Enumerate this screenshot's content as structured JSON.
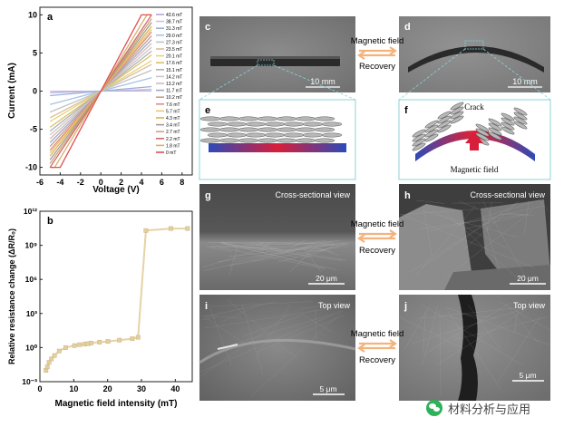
{
  "panels": {
    "a": {
      "label": "a",
      "xlabel": "Voltage (V)",
      "ylabel": "Current (mA)",
      "xticks": [
        "-6",
        "-4",
        "-2",
        "0",
        "2",
        "4",
        "6",
        "8"
      ],
      "yticks": [
        "10",
        "5",
        "0",
        "-5",
        "-10"
      ]
    },
    "b": {
      "label": "b",
      "xlabel": "Magnetic field intensity (mT)",
      "ylabel": "Relative resistance change (ΔR/R₀)",
      "xticks": [
        "0",
        "10",
        "20",
        "30",
        "40"
      ]
    },
    "c": {
      "label": "c",
      "scale": "10 mm"
    },
    "d": {
      "label": "d",
      "scale": "10 mm"
    },
    "e": {
      "label": "e"
    },
    "f": {
      "label": "f",
      "crack": "Crack",
      "field": "Magnetic field"
    },
    "g": {
      "label": "g",
      "title": "Cross-sectional view",
      "scale": "20 μm"
    },
    "h": {
      "label": "h",
      "title": "Cross-sectional view",
      "scale": "20 μm"
    },
    "i": {
      "label": "i",
      "title": "Top view",
      "scale": "5 μm"
    },
    "j": {
      "label": "j",
      "title": "Top view",
      "scale": "5 μm"
    }
  },
  "arrows": {
    "forward": "Magnetic field",
    "back": "Recovery"
  },
  "watermark": "材料分析与应用",
  "chart_data": [
    {
      "type": "line",
      "title": "",
      "xlabel": "Voltage (V)",
      "ylabel": "Current (mA)",
      "xlim": [
        -6,
        9
      ],
      "ylim": [
        -11,
        11
      ],
      "legend_position": "top-right",
      "legend": [
        "43.6 mT",
        "38.7 mT",
        "31.3 mT",
        "29.0 mT",
        "27.3 mT",
        "23.5 mT",
        "20.1 mT",
        "17.6 mT",
        "15.1 mT",
        "14.2 mT",
        "13.2 mT",
        "11.7 mT",
        "10.2 mT",
        "7.6 mT",
        "5.7 mT",
        "4.3 mT",
        "3.4 mT",
        "2.7 mT",
        "2.2 mT",
        "1.8 mT",
        "0 mT"
      ],
      "series_slopes_mA_per_V": [
        0.01,
        0.05,
        0.12,
        0.35,
        0.55,
        0.7,
        0.8,
        0.95,
        1.05,
        1.15,
        1.25,
        1.35,
        1.45,
        1.55,
        1.62,
        1.7,
        1.8,
        1.9,
        2.0,
        2.2,
        2.5
      ],
      "colors": [
        "#b8a3d6",
        "#c9c1e4",
        "#9bb0d6",
        "#a6c3e6",
        "#c2c2c2",
        "#d6bfa0",
        "#e8d27a",
        "#d8c067",
        "#b0b0b0",
        "#c8c8c8",
        "#d8b8b8",
        "#9aa7c8",
        "#c8a08a",
        "#e08a8a",
        "#e3c870",
        "#e4b04a",
        "#9c9c9c",
        "#cfa47a",
        "#d06a6a",
        "#d8b070",
        "#e05050"
      ]
    },
    {
      "type": "scatter",
      "title": "",
      "xlabel": "Magnetic field intensity (mT)",
      "ylabel": "Relative resistance change (ΔR/R₀)",
      "xlim": [
        0,
        45
      ],
      "yscale": "log",
      "ylim": [
        0.001,
        1000000000000
      ],
      "ytick_labels": [
        "10⁻³",
        "10⁰",
        "10³",
        "10⁶",
        "10⁹",
        "10¹²"
      ],
      "x": [
        1.8,
        2.2,
        2.7,
        3.4,
        4.3,
        5.7,
        7.6,
        10.2,
        11.7,
        13.2,
        14.2,
        15.1,
        17.6,
        20.1,
        23.5,
        27.3,
        29.0,
        31.3,
        38.7,
        43.6
      ],
      "y": [
        0.01,
        0.02,
        0.05,
        0.1,
        0.2,
        0.5,
        1.0,
        1.5,
        1.8,
        2.0,
        2.2,
        2.5,
        3.0,
        3.5,
        4.5,
        6.0,
        8.0,
        20000000000,
        30000000000,
        30000000000
      ]
    }
  ]
}
